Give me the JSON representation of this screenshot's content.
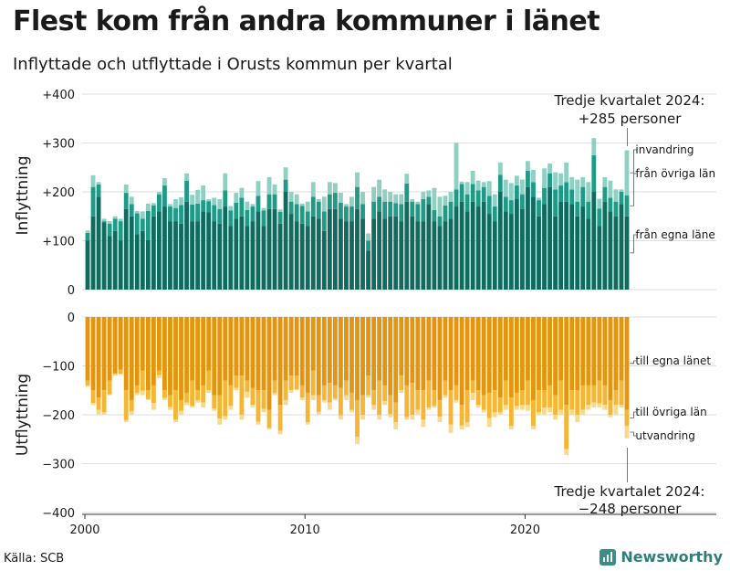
{
  "title": "Flest kom från andra kommuner i länet",
  "subtitle": "Inflyttade och utflyttade i Orusts kommun per kvartal",
  "source": "Källa: SCB",
  "brand": "Newsworthy",
  "colors": {
    "in_own": "#0e6b5e",
    "in_other": "#1f9a86",
    "in_immigration": "#8fd0c3",
    "out_own": "#e5940e",
    "out_other": "#f6b534",
    "out_emigration": "#f8d98e",
    "grid": "#dddddd"
  },
  "chart_data": [
    {
      "type": "bar",
      "stacked": true,
      "ylabel": "Inflyttning",
      "ylim": [
        0,
        400
      ],
      "yticks": [
        0,
        100,
        200,
        300,
        400
      ],
      "ytick_labels": [
        "0",
        "+100",
        "+200",
        "+300",
        "+400"
      ],
      "grid": true,
      "x_start": "2000 Q1",
      "x_end": "2024 Q3",
      "x_unit": "kvartal",
      "series": [
        {
          "name": "från egna läne",
          "color": "#0e6b5e",
          "values": [
            100,
            150,
            190,
            138,
            110,
            120,
            100,
            165,
            150,
            113,
            120,
            101,
            150,
            160,
            170,
            140,
            140,
            135,
            180,
            140,
            140,
            160,
            158,
            140,
            135,
            170,
            130,
            145,
            150,
            130,
            140,
            160,
            130,
            165,
            165,
            135,
            200,
            155,
            140,
            135,
            130,
            150,
            145,
            120,
            165,
            165,
            145,
            140,
            140,
            165,
            145,
            80,
            145,
            160,
            145,
            150,
            150,
            140,
            180,
            150,
            140,
            140,
            175,
            140,
            130,
            140,
            145,
            170,
            180,
            160,
            180,
            170,
            180,
            155,
            140,
            200,
            160,
            155,
            185,
            165,
            210,
            190,
            150,
            175,
            210,
            150,
            180,
            180,
            175,
            150,
            170,
            145,
            200,
            130,
            180,
            160,
            150,
            175,
            150
          ]
        },
        {
          "name": "från övriga län",
          "color": "#1f9a86",
          "values": [
            16,
            60,
            25,
            2,
            25,
            25,
            40,
            33,
            25,
            43,
            25,
            60,
            22,
            35,
            43,
            30,
            27,
            38,
            43,
            34,
            36,
            23,
            23,
            33,
            30,
            33,
            32,
            33,
            38,
            33,
            30,
            32,
            32,
            30,
            30,
            24,
            25,
            25,
            35,
            36,
            30,
            40,
            35,
            40,
            30,
            33,
            33,
            30,
            30,
            45,
            30,
            20,
            35,
            30,
            35,
            30,
            27,
            35,
            37,
            30,
            35,
            45,
            15,
            23,
            20,
            32,
            35,
            35,
            36,
            35,
            36,
            33,
            30,
            37,
            30,
            35,
            30,
            28,
            28,
            30,
            33,
            30,
            33,
            33,
            28,
            55,
            33,
            40,
            30,
            30,
            40,
            35,
            75,
            36,
            30,
            28,
            30,
            25,
            43
          ]
        },
        {
          "name": "invandring",
          "color": "#8fd0c3",
          "values": [
            5,
            24,
            5,
            5,
            5,
            5,
            5,
            17,
            15,
            5,
            15,
            15,
            5,
            5,
            15,
            5,
            18,
            16,
            15,
            20,
            28,
            30,
            4,
            15,
            20,
            35,
            9,
            20,
            20,
            17,
            5,
            30,
            5,
            35,
            20,
            5,
            25,
            20,
            20,
            5,
            20,
            30,
            5,
            30,
            25,
            20,
            20,
            5,
            20,
            30,
            25,
            15,
            30,
            35,
            25,
            20,
            18,
            20,
            20,
            5,
            5,
            15,
            13,
            45,
            40,
            20,
            20,
            95,
            5,
            25,
            27,
            20,
            10,
            30,
            25,
            25,
            35,
            35,
            20,
            30,
            20,
            25,
            5,
            40,
            20,
            35,
            25,
            40,
            25,
            45,
            20,
            40,
            35,
            20,
            20,
            35,
            25,
            5,
            92
          ]
        }
      ]
    },
    {
      "type": "bar",
      "stacked": true,
      "direction": "down",
      "ylabel": "Utflyttning",
      "ylim": [
        -400,
        0
      ],
      "yticks": [
        0,
        -100,
        -200,
        -300,
        -400
      ],
      "ytick_labels": [
        "0",
        "−100",
        "−200",
        "−300",
        "−400"
      ],
      "grid": true,
      "x_start": "2000 Q1",
      "x_end": "2024 Q3",
      "x_unit": "kvartal",
      "xtick_labels": [
        "2000",
        "2010",
        "2020"
      ],
      "series": [
        {
          "name": "till egna länet",
          "color": "#e5940e",
          "values": [
            -130,
            -150,
            -165,
            -150,
            -130,
            -115,
            -108,
            -150,
            -170,
            -140,
            -110,
            -150,
            -140,
            -110,
            -150,
            -160,
            -150,
            -170,
            -155,
            -130,
            -150,
            -140,
            -110,
            -160,
            -160,
            -130,
            -140,
            -120,
            -120,
            -130,
            -145,
            -150,
            -150,
            -190,
            -130,
            -180,
            -130,
            -120,
            -120,
            -140,
            -155,
            -110,
            -160,
            -140,
            -135,
            -140,
            -145,
            -130,
            -155,
            -170,
            -160,
            -120,
            -150,
            -130,
            -140,
            -160,
            -175,
            -120,
            -140,
            -135,
            -150,
            -150,
            -130,
            -150,
            -170,
            -130,
            -150,
            -140,
            -180,
            -150,
            -130,
            -150,
            -160,
            -155,
            -150,
            -165,
            -130,
            -165,
            -155,
            -150,
            -130,
            -170,
            -150,
            -150,
            -140,
            -160,
            -130,
            -180,
            -150,
            -150,
            -140,
            -140,
            -140,
            -130,
            -140,
            -170,
            -150,
            -130,
            -190
          ]
        },
        {
          "name": "till övriga län",
          "color": "#f6b534",
          "values": [
            -10,
            -26,
            -25,
            -45,
            -28,
            -2,
            -8,
            -61,
            -23,
            -15,
            -41,
            -18,
            -36,
            -9,
            -16,
            -24,
            -60,
            -22,
            -20,
            -52,
            -20,
            -35,
            -40,
            -27,
            -48,
            -73,
            -42,
            -25,
            -80,
            -23,
            -35,
            -64,
            -38,
            -37,
            -25,
            -53,
            -40,
            -30,
            -28,
            -25,
            -60,
            -50,
            -34,
            -30,
            -40,
            -27,
            -56,
            -30,
            -35,
            -75,
            -40,
            -40,
            -30,
            -70,
            -32,
            -39,
            -40,
            -30,
            -65,
            -65,
            -40,
            -60,
            -55,
            -32,
            -34,
            -30,
            -70,
            -30,
            -42,
            -65,
            -25,
            -30,
            -30,
            -52,
            -45,
            -30,
            -50,
            -58,
            -27,
            -30,
            -50,
            -53,
            -45,
            -35,
            -45,
            -40,
            -60,
            -90,
            -40,
            -50,
            -50,
            -40,
            -35,
            -47,
            -40,
            -30,
            -30,
            -50,
            -33
          ]
        },
        {
          "name": "utvandring",
          "color": "#f8d98e",
          "values": [
            -3,
            -4,
            -10,
            -5,
            -2,
            -3,
            -2,
            -4,
            -7,
            -5,
            -9,
            -2,
            -14,
            -6,
            -4,
            -6,
            -5,
            -8,
            -5,
            -3,
            -5,
            -10,
            -5,
            -5,
            -12,
            -7,
            -8,
            -5,
            -10,
            -12,
            -5,
            -6,
            -7,
            -3,
            -5,
            -7,
            -10,
            -5,
            -2,
            -5,
            -5,
            -10,
            -6,
            -5,
            -15,
            -3,
            -9,
            -10,
            -5,
            -15,
            -10,
            -5,
            -10,
            -10,
            -8,
            -6,
            -15,
            -5,
            -5,
            -10,
            -10,
            -15,
            -5,
            -3,
            -11,
            -5,
            -17,
            -5,
            -8,
            -10,
            -15,
            -5,
            -5,
            -18,
            -10,
            -5,
            -10,
            -7,
            -8,
            -10,
            -12,
            -7,
            -5,
            -15,
            -10,
            -10,
            -10,
            -12,
            -10,
            -15,
            -10,
            -10,
            -10,
            -8,
            -10,
            -5,
            -20,
            -5,
            -25
          ]
        }
      ]
    }
  ],
  "annotations": {
    "top_line1": "Tredje kvartalet 2024:",
    "top_line2": "+285 personer",
    "bottom_line1": "Tredje kvartalet 2024:",
    "bottom_line2": "−248 personer"
  }
}
